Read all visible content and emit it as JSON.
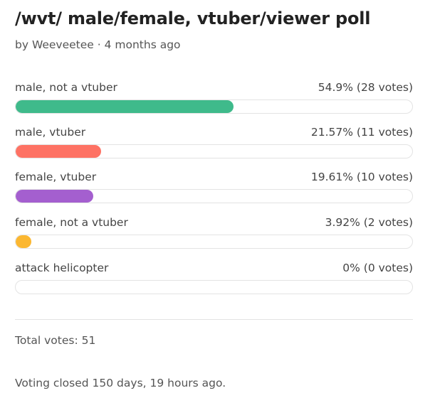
{
  "poll": {
    "title": "/wvt/ male/female, vtuber/viewer poll",
    "byline": "by Weeveetee · 4 months ago",
    "options": [
      {
        "label": "male, not a vtuber",
        "result": "54.9% (28 votes)",
        "percent": 54.9,
        "color": "#3fba8b"
      },
      {
        "label": "male, vtuber",
        "result": "21.57% (11 votes)",
        "percent": 21.57,
        "color": "#fe7264"
      },
      {
        "label": "female, vtuber",
        "result": "19.61% (10 votes)",
        "percent": 19.61,
        "color": "#a45fcf"
      },
      {
        "label": "female, not a vtuber",
        "result": "3.92% (2 votes)",
        "percent": 3.92,
        "color": "#fbb731"
      },
      {
        "label": "attack helicopter",
        "result": "0% (0 votes)",
        "percent": 0,
        "color": "#cccccc"
      }
    ],
    "total_votes": "Total votes: 51",
    "closed_text": "Voting closed 150 days, 19 hours ago."
  }
}
